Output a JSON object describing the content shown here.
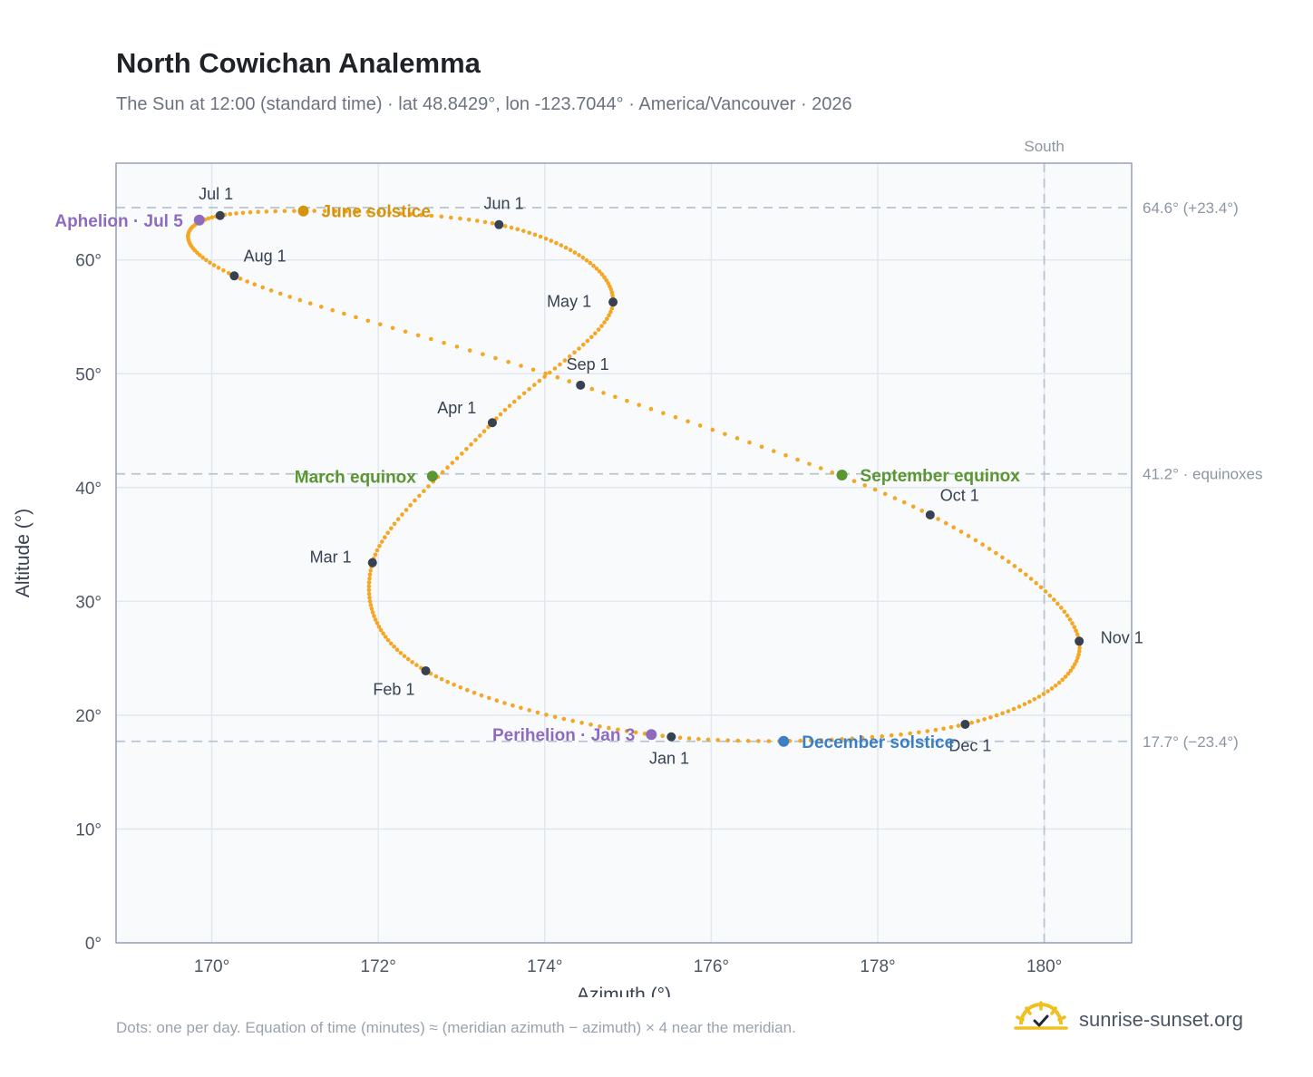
{
  "title": "North Cowichan Analemma",
  "subtitle": "The Sun at 12:00 (standard time) · lat 48.8429°, lon -123.7044° · America/Vancouver · 2026",
  "footnote": "Dots: one per day. Equation of time (minutes) ≈ (meridian azimuth − azimuth) × 4 near the meridian.",
  "brand": {
    "name": "sunrise-sunset.org",
    "icon": "sun-check-icon",
    "color": "#f0c020"
  },
  "chart_data": {
    "type": "scatter",
    "xlabel": "Azimuth (°)",
    "ylabel": "Altitude (°)",
    "xlim": [
      168.85,
      181.05
    ],
    "ylim": [
      0,
      68.5
    ],
    "xticks": [
      170,
      172,
      174,
      176,
      178,
      180
    ],
    "yticks": [
      0,
      10,
      20,
      30,
      40,
      50,
      60
    ],
    "grid": true,
    "path_color": "#f5a623",
    "meridian": {
      "x": 180,
      "label": "South"
    },
    "reference_lines": [
      {
        "y": 64.6,
        "label": "64.6° (+23.4°)"
      },
      {
        "y": 41.2,
        "label": "41.2° · equinoxes"
      },
      {
        "y": 17.7,
        "label": "17.7° (−23.4°)"
      }
    ],
    "months": [
      {
        "label": "Jan 1",
        "x": 175.52,
        "y": 18.1
      },
      {
        "label": "Feb 1",
        "x": 172.57,
        "y": 23.9
      },
      {
        "label": "Mar 1",
        "x": 171.93,
        "y": 33.4
      },
      {
        "label": "Apr 1",
        "x": 173.37,
        "y": 45.7
      },
      {
        "label": "May 1",
        "x": 174.82,
        "y": 56.3
      },
      {
        "label": "Jun 1",
        "x": 173.45,
        "y": 63.1
      },
      {
        "label": "Jul 1",
        "x": 170.1,
        "y": 63.9
      },
      {
        "label": "Aug 1",
        "x": 170.27,
        "y": 58.6
      },
      {
        "label": "Sep 1",
        "x": 174.43,
        "y": 49.0
      },
      {
        "label": "Oct 1",
        "x": 178.63,
        "y": 37.6
      },
      {
        "label": "Nov 1",
        "x": 180.42,
        "y": 26.5
      },
      {
        "label": "Dec 1",
        "x": 179.05,
        "y": 19.2
      }
    ],
    "events": [
      {
        "label": "June solstice",
        "x": 171.1,
        "y": 64.3,
        "color": "#d4940e"
      },
      {
        "label": "Aphelion · Jul 5",
        "x": 169.85,
        "y": 63.5,
        "color": "#8e6bbf"
      },
      {
        "label": "March equinox",
        "x": 172.65,
        "y": 41.0,
        "color": "#5a9632"
      },
      {
        "label": "September equinox",
        "x": 177.57,
        "y": 41.1,
        "color": "#5a9632"
      },
      {
        "label": "December solstice",
        "x": 176.87,
        "y": 17.7,
        "color": "#3b7fc4"
      },
      {
        "label": "Perihelion · Jan 3",
        "x": 175.28,
        "y": 18.3,
        "color": "#8e6bbf"
      }
    ]
  }
}
